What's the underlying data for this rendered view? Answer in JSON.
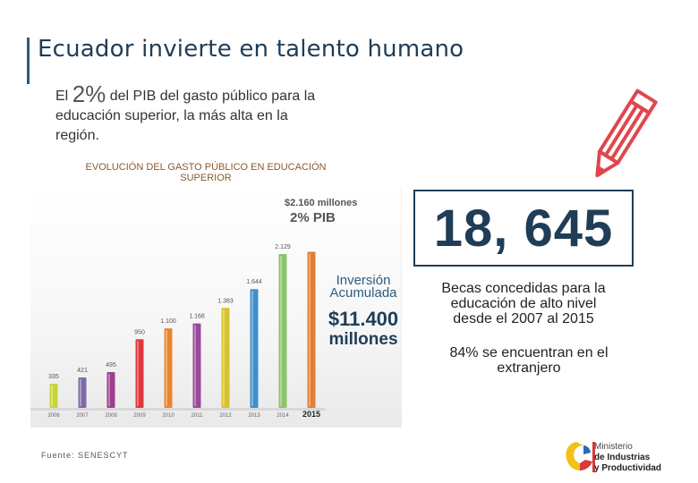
{
  "header": {
    "title": "Ecuador invierte en talento humano"
  },
  "intro": {
    "prefix": "El",
    "percent": "2%",
    "line1_rest": "del PIB del gasto público para la",
    "line2": "educación superior, la más alta en la",
    "line3": "región."
  },
  "chart_title": {
    "line1": "EVOLUCIÓN DEL GASTO PÚBLICO EN EDUCACIÓN",
    "line2": "SUPERIOR"
  },
  "chart_data": {
    "type": "bar",
    "categories": [
      "2006",
      "2007",
      "2008",
      "2009",
      "2010",
      "2011",
      "2012",
      "2013",
      "2014",
      "2015"
    ],
    "values": [
      335,
      421,
      495,
      950,
      1100,
      1168,
      1383,
      1644,
      2129,
      2160
    ],
    "value_labels": [
      "335",
      "421",
      "495",
      "950",
      "1.100",
      "1.168",
      "1.383",
      "1.644",
      "2.129",
      ""
    ],
    "bar_colors": [
      "#c5d53a",
      "#7f6aa8",
      "#9d3f8f",
      "#e0373d",
      "#e8862f",
      "#9a4a9b",
      "#d8c22a",
      "#3f8fcc",
      "#8cc46a",
      "#e07f34"
    ],
    "highlight": {
      "line1": "$2.160 millones",
      "line2": "2% PIB"
    },
    "investment": {
      "line1": "Inversión",
      "line2": "Acumulada",
      "amount": "$11.400",
      "unit": "millones"
    },
    "ylim": [
      0,
      2600
    ],
    "grid": false
  },
  "source": "Fuente: SENESCYT",
  "stat": {
    "value": "18, 645",
    "desc_line1": "Becas concedidas para la",
    "desc_line2": "educación de alto nivel",
    "desc_line3": "desde el 2007 al 2015",
    "note_line1": "84% se encuentran en el",
    "note_line2": "extranjero"
  },
  "logo": {
    "line1": "Ministerio",
    "line2": "de Industrias",
    "line3": "y Productividad"
  },
  "icons": {
    "pencil": "pencil-icon",
    "logo": "ministry-logo"
  },
  "colors": {
    "title": "#1f3d57",
    "pencil": "#e0474c",
    "chart_title": "#8a5a2b",
    "investment": "#1f3d57"
  }
}
